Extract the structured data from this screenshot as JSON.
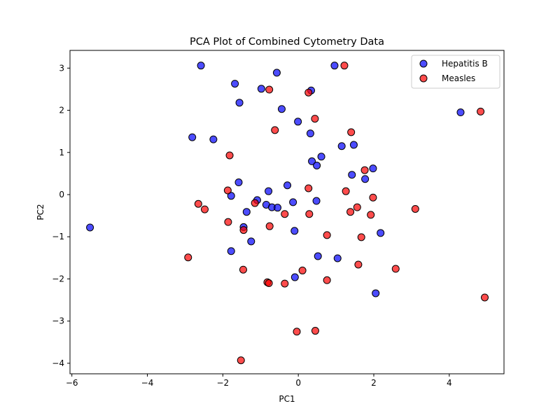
{
  "chart_data": {
    "type": "scatter",
    "title": "PCA Plot of Combined Cytometry Data",
    "xlabel": "PC1",
    "ylabel": "PC2",
    "xlim": [
      -6.05,
      5.45
    ],
    "ylim": [
      -4.25,
      3.42
    ],
    "xticks": [
      -6,
      -4,
      -2,
      0,
      2,
      4
    ],
    "yticks": [
      -4,
      -3,
      -2,
      -1,
      0,
      1,
      2,
      3
    ],
    "grid": false,
    "legend": "top-right",
    "series": [
      {
        "name": "Hepatitis B",
        "color": "#0000ff",
        "points": [
          [
            -2.58,
            3.06
          ],
          [
            -1.68,
            2.63
          ],
          [
            -0.57,
            2.89
          ],
          [
            -1.56,
            2.18
          ],
          [
            -0.98,
            2.51
          ],
          [
            0.34,
            2.47
          ],
          [
            0.96,
            3.06
          ],
          [
            -0.44,
            2.03
          ],
          [
            4.3,
            1.95
          ],
          [
            -2.81,
            1.36
          ],
          [
            -2.25,
            1.31
          ],
          [
            -0.01,
            1.73
          ],
          [
            0.32,
            1.45
          ],
          [
            1.15,
            1.15
          ],
          [
            1.47,
            1.18
          ],
          [
            0.61,
            0.9
          ],
          [
            0.36,
            0.79
          ],
          [
            0.49,
            0.69
          ],
          [
            1.98,
            0.62
          ],
          [
            1.42,
            0.47
          ],
          [
            1.77,
            0.37
          ],
          [
            -1.58,
            0.29
          ],
          [
            -0.29,
            0.22
          ],
          [
            -0.79,
            0.08
          ],
          [
            -1.78,
            -0.03
          ],
          [
            -1.09,
            -0.13
          ],
          [
            -0.14,
            -0.18
          ],
          [
            0.48,
            -0.15
          ],
          [
            -0.85,
            -0.24
          ],
          [
            -0.7,
            -0.3
          ],
          [
            -0.55,
            -0.31
          ],
          [
            -1.37,
            -0.41
          ],
          [
            -5.52,
            -0.78
          ],
          [
            -1.45,
            -0.77
          ],
          [
            -0.1,
            -0.86
          ],
          [
            2.18,
            -0.91
          ],
          [
            -1.25,
            -1.11
          ],
          [
            -1.78,
            -1.34
          ],
          [
            0.52,
            -1.46
          ],
          [
            1.04,
            -1.51
          ],
          [
            -0.09,
            -1.96
          ],
          [
            2.05,
            -2.34
          ]
        ]
      },
      {
        "name": "Measles",
        "color": "#ff0000",
        "points": [
          [
            1.22,
            3.06
          ],
          [
            -0.77,
            2.49
          ],
          [
            0.27,
            2.42
          ],
          [
            0.44,
            1.8
          ],
          [
            -0.62,
            1.53
          ],
          [
            4.83,
            1.97
          ],
          [
            1.4,
            1.48
          ],
          [
            -1.82,
            0.93
          ],
          [
            1.76,
            0.58
          ],
          [
            0.27,
            0.15
          ],
          [
            -1.87,
            0.1
          ],
          [
            1.26,
            0.08
          ],
          [
            1.98,
            -0.07
          ],
          [
            -2.65,
            -0.22
          ],
          [
            -1.15,
            -0.2
          ],
          [
            -2.48,
            -0.35
          ],
          [
            1.56,
            -0.3
          ],
          [
            1.38,
            -0.41
          ],
          [
            -0.36,
            -0.46
          ],
          [
            0.29,
            -0.46
          ],
          [
            1.92,
            -0.48
          ],
          [
            3.1,
            -0.34
          ],
          [
            -1.86,
            -0.65
          ],
          [
            -0.76,
            -0.75
          ],
          [
            -1.45,
            -0.84
          ],
          [
            0.76,
            -0.96
          ],
          [
            1.67,
            -1.01
          ],
          [
            -2.92,
            -1.49
          ],
          [
            1.59,
            -1.66
          ],
          [
            -1.46,
            -1.78
          ],
          [
            2.58,
            -1.76
          ],
          [
            0.11,
            -1.8
          ],
          [
            -0.82,
            -2.08
          ],
          [
            -0.78,
            -2.1
          ],
          [
            -0.36,
            -2.11
          ],
          [
            0.76,
            -2.03
          ],
          [
            4.94,
            -2.44
          ],
          [
            -0.04,
            -3.25
          ],
          [
            0.45,
            -3.23
          ],
          [
            -1.52,
            -3.93
          ]
        ]
      }
    ]
  }
}
